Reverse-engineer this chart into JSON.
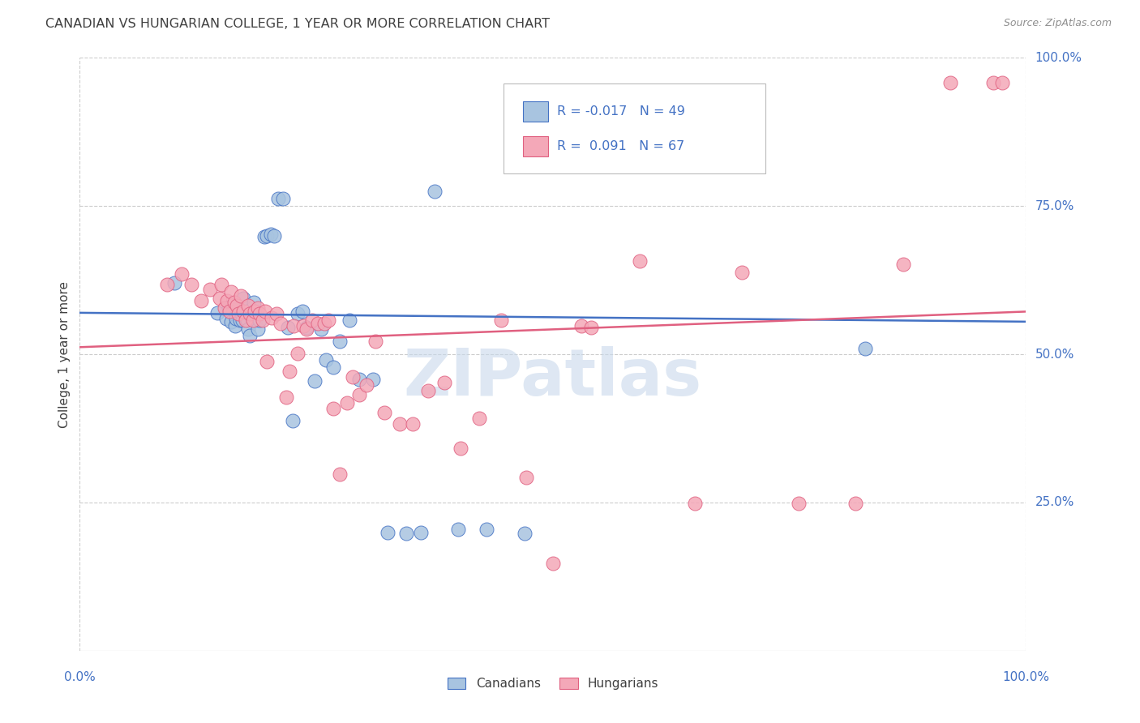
{
  "title": "CANADIAN VS HUNGARIAN COLLEGE, 1 YEAR OR MORE CORRELATION CHART",
  "source": "Source: ZipAtlas.com",
  "ylabel": "College, 1 year or more",
  "watermark": "ZIPatlas",
  "xlim": [
    0.0,
    1.0
  ],
  "ylim": [
    0.0,
    1.0
  ],
  "legend_R_canadian": "-0.017",
  "legend_N_canadian": "49",
  "legend_R_hungarian": "0.091",
  "legend_N_hungarian": "67",
  "canadian_color": "#a8c4e0",
  "hungarian_color": "#f4a8b8",
  "line_canadian_color": "#4472c4",
  "line_hungarian_color": "#e06080",
  "title_color": "#404040",
  "source_color": "#909090",
  "tick_label_color": "#4472c4",
  "legend_text_color": "#4472c4",
  "watermark_color": "#c8d8eb",
  "canadian_x": [
    0.1,
    0.145,
    0.155,
    0.157,
    0.16,
    0.162,
    0.164,
    0.165,
    0.167,
    0.169,
    0.17,
    0.172,
    0.173,
    0.175,
    0.177,
    0.178,
    0.18,
    0.182,
    0.184,
    0.186,
    0.188,
    0.19,
    0.195,
    0.198,
    0.202,
    0.205,
    0.21,
    0.215,
    0.22,
    0.225,
    0.23,
    0.235,
    0.24,
    0.248,
    0.255,
    0.26,
    0.268,
    0.275,
    0.285,
    0.295,
    0.31,
    0.325,
    0.345,
    0.36,
    0.375,
    0.4,
    0.43,
    0.47,
    0.83
  ],
  "canadian_y": [
    0.62,
    0.57,
    0.56,
    0.58,
    0.555,
    0.575,
    0.548,
    0.56,
    0.58,
    0.558,
    0.57,
    0.558,
    0.595,
    0.562,
    0.558,
    0.542,
    0.532,
    0.562,
    0.588,
    0.558,
    0.542,
    0.558,
    0.698,
    0.7,
    0.702,
    0.7,
    0.762,
    0.762,
    0.545,
    0.388,
    0.568,
    0.572,
    0.545,
    0.455,
    0.542,
    0.49,
    0.478,
    0.522,
    0.558,
    0.458,
    0.458,
    0.2,
    0.198,
    0.2,
    0.775,
    0.205,
    0.205,
    0.198,
    0.51
  ],
  "hungarian_x": [
    0.092,
    0.108,
    0.118,
    0.128,
    0.138,
    0.148,
    0.15,
    0.153,
    0.156,
    0.158,
    0.16,
    0.163,
    0.166,
    0.168,
    0.17,
    0.173,
    0.175,
    0.178,
    0.18,
    0.183,
    0.185,
    0.188,
    0.19,
    0.193,
    0.196,
    0.198,
    0.203,
    0.208,
    0.212,
    0.218,
    0.222,
    0.226,
    0.23,
    0.236,
    0.24,
    0.246,
    0.252,
    0.258,
    0.263,
    0.268,
    0.275,
    0.282,
    0.288,
    0.295,
    0.303,
    0.312,
    0.322,
    0.338,
    0.352,
    0.368,
    0.385,
    0.402,
    0.422,
    0.445,
    0.472,
    0.5,
    0.53,
    0.54,
    0.592,
    0.65,
    0.7,
    0.76,
    0.82,
    0.87,
    0.92,
    0.965,
    0.975
  ],
  "hungarian_y": [
    0.618,
    0.635,
    0.618,
    0.59,
    0.61,
    0.595,
    0.618,
    0.578,
    0.59,
    0.572,
    0.605,
    0.588,
    0.582,
    0.568,
    0.598,
    0.572,
    0.558,
    0.582,
    0.568,
    0.558,
    0.572,
    0.578,
    0.568,
    0.558,
    0.572,
    0.488,
    0.562,
    0.568,
    0.552,
    0.428,
    0.472,
    0.548,
    0.502,
    0.548,
    0.542,
    0.558,
    0.552,
    0.552,
    0.558,
    0.408,
    0.298,
    0.418,
    0.462,
    0.432,
    0.448,
    0.522,
    0.402,
    0.382,
    0.382,
    0.438,
    0.452,
    0.342,
    0.392,
    0.558,
    0.292,
    0.148,
    0.548,
    0.545,
    0.658,
    0.248,
    0.638,
    0.248,
    0.248,
    0.652,
    0.958,
    0.958,
    0.958
  ],
  "trend_canadian_start": 0.57,
  "trend_canadian_end": 0.555,
  "trend_hungarian_start": 0.512,
  "trend_hungarian_end": 0.572
}
